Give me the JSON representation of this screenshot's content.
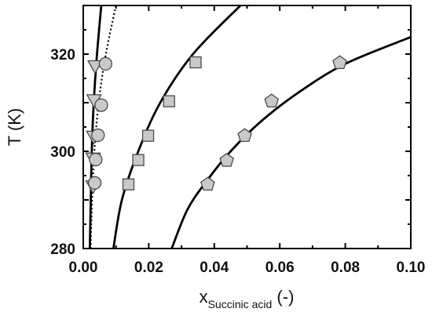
{
  "chart_data": {
    "type": "scatter",
    "xlabel": {
      "main": "x",
      "sub": "Succinic acid",
      "unit": "(-)"
    },
    "ylabel": "T (K)",
    "xlim": [
      0.0,
      0.1
    ],
    "ylim": [
      280,
      330
    ],
    "xticks": [
      "0.00",
      "0.02",
      "0.04",
      "0.06",
      "0.08",
      "0.10"
    ],
    "yticks": [
      "280",
      "300",
      "320"
    ],
    "grid": false,
    "legend": "none",
    "colors": {
      "marker_fill": "#c9c9c9",
      "marker_stroke": "#4a4a4a",
      "line": "#000000"
    },
    "series": [
      {
        "marker": "triangle-down",
        "points": [
          [
            0.003,
            292.8
          ],
          [
            0.003,
            298.5
          ],
          [
            0.0032,
            303.0
          ],
          [
            0.0033,
            310.5
          ],
          [
            0.0036,
            317.5
          ]
        ]
      },
      {
        "marker": "circle",
        "points": [
          [
            0.0035,
            293.5
          ],
          [
            0.0038,
            298.3
          ],
          [
            0.0045,
            303.3
          ],
          [
            0.0055,
            309.5
          ],
          [
            0.0068,
            318.0
          ]
        ]
      },
      {
        "marker": "square",
        "points": [
          [
            0.0138,
            293.2
          ],
          [
            0.0168,
            298.2
          ],
          [
            0.0198,
            303.2
          ],
          [
            0.0262,
            310.3
          ],
          [
            0.0343,
            318.3
          ]
        ]
      },
      {
        "marker": "pentagon",
        "points": [
          [
            0.038,
            293.2
          ],
          [
            0.0438,
            298.1
          ],
          [
            0.0493,
            303.2
          ],
          [
            0.0575,
            310.3
          ],
          [
            0.0783,
            318.2
          ]
        ]
      }
    ],
    "curves": [
      {
        "style": "solid",
        "points": [
          [
            0.002,
            280
          ],
          [
            0.0023,
            290
          ],
          [
            0.0026,
            300
          ],
          [
            0.0032,
            310
          ],
          [
            0.0042,
            320
          ],
          [
            0.0055,
            330
          ]
        ]
      },
      {
        "style": "dotted",
        "points": [
          [
            0.0022,
            280
          ],
          [
            0.0027,
            290
          ],
          [
            0.0034,
            300
          ],
          [
            0.0047,
            310
          ],
          [
            0.0069,
            320
          ],
          [
            0.01,
            330
          ]
        ]
      },
      {
        "style": "solid",
        "points": [
          [
            0.0092,
            280
          ],
          [
            0.0118,
            290
          ],
          [
            0.0168,
            300
          ],
          [
            0.0235,
            310
          ],
          [
            0.0335,
            320
          ],
          [
            0.048,
            330
          ]
        ]
      },
      {
        "style": "solid",
        "points": [
          [
            0.027,
            280
          ],
          [
            0.0318,
            288
          ],
          [
            0.0378,
            294
          ],
          [
            0.045,
            300
          ],
          [
            0.054,
            306
          ],
          [
            0.0655,
            312
          ],
          [
            0.08,
            318
          ],
          [
            0.1,
            323.5
          ]
        ]
      }
    ]
  }
}
